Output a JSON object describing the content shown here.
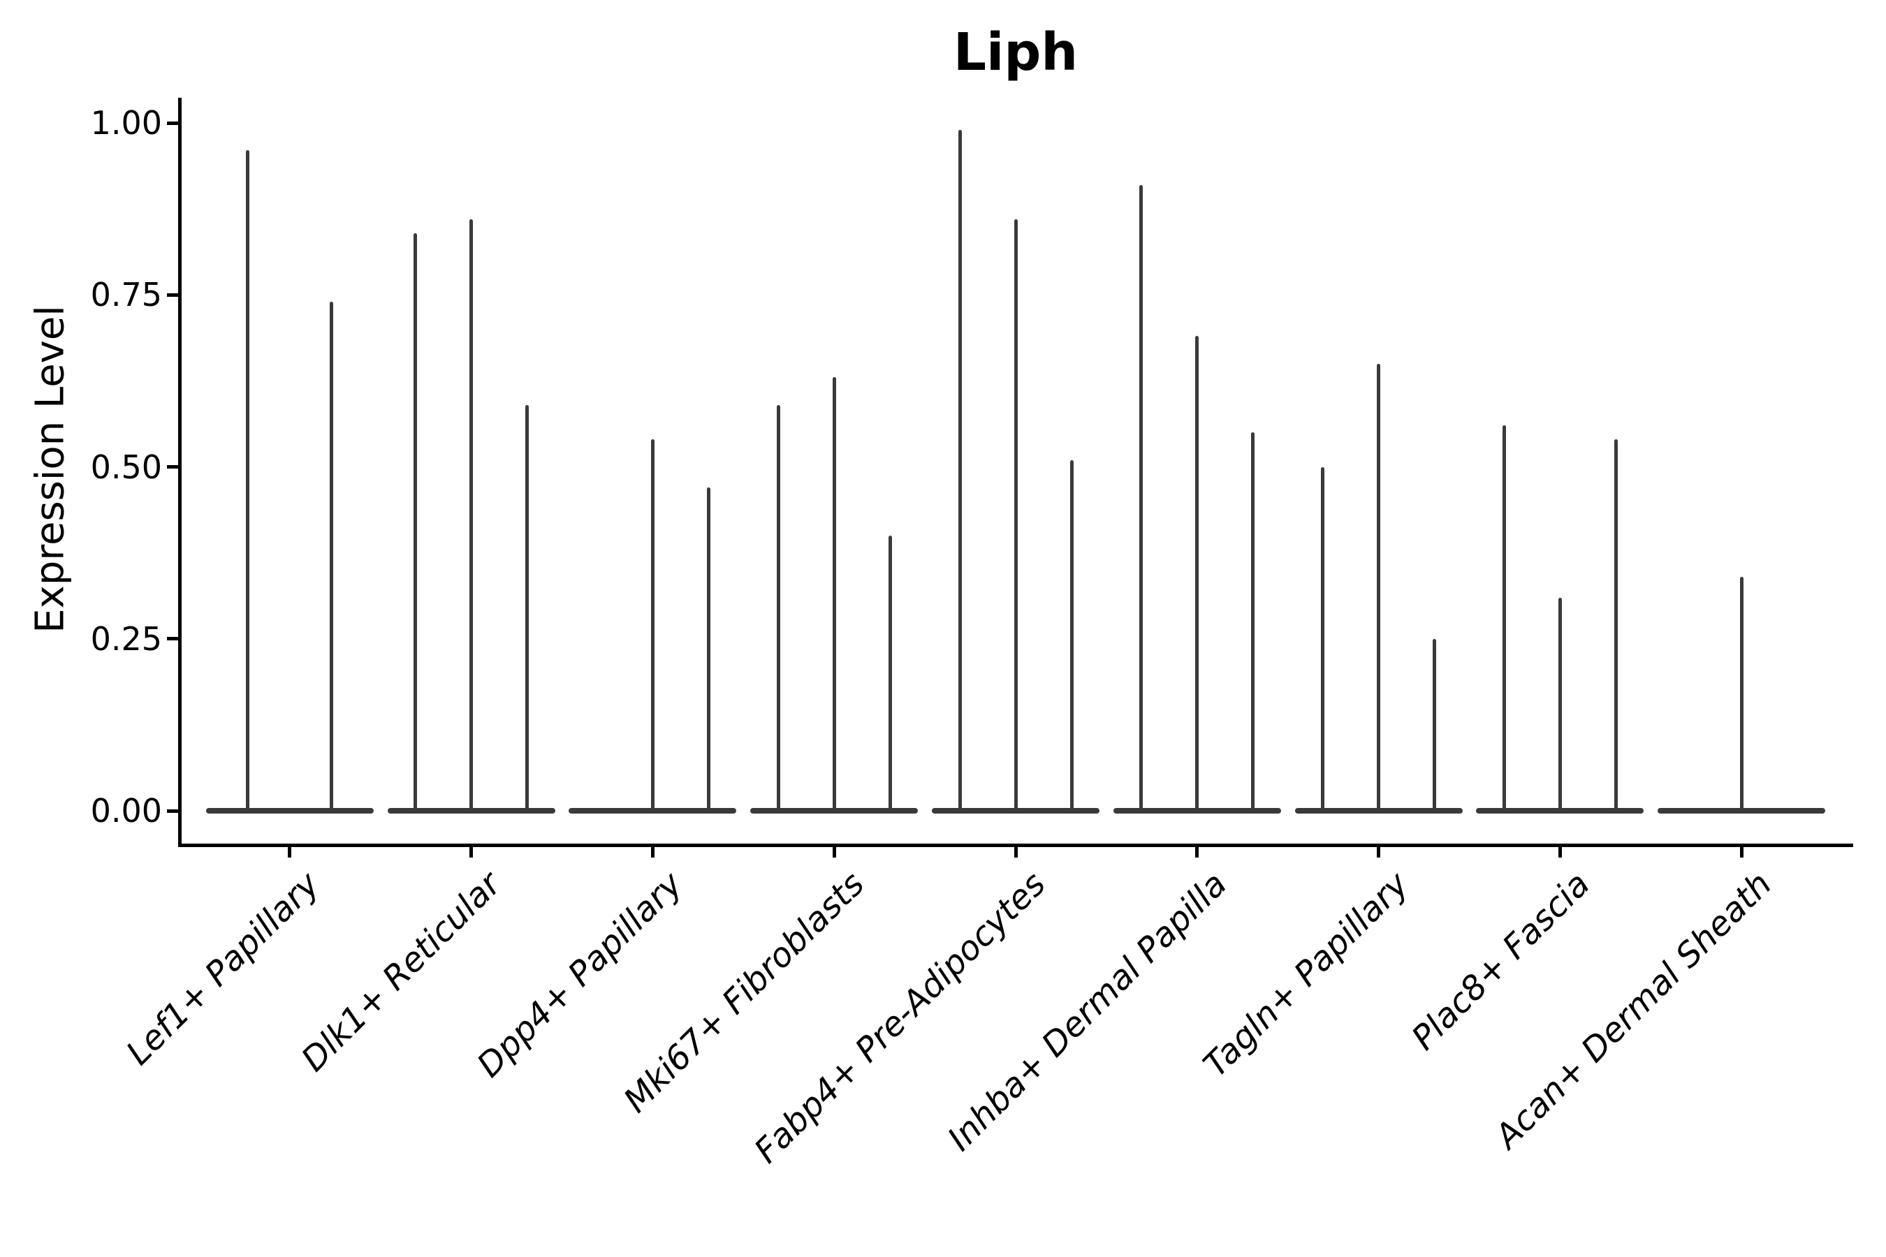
{
  "title": "Liph",
  "colors": {
    "violin": "#3a3a3a",
    "axis": "#000000",
    "background": "#ffffff",
    "text": "#000000"
  },
  "chart_data": {
    "type": "violin",
    "title": "Liph",
    "xlabel": "",
    "ylabel": "Expression Level",
    "ylim": [
      -0.05,
      1.04
    ],
    "yticks": [
      0.0,
      0.25,
      0.5,
      0.75,
      1.0
    ],
    "ytick_labels": [
      "0.00",
      "0.25",
      "0.50",
      "0.75",
      "1.00"
    ],
    "grid": false,
    "legend": null,
    "categories": [
      "Lef1+ Papillary",
      "Dlk1+ Reticular",
      "Dpp4+ Papillary",
      "Mki67+ Fibroblasts",
      "Fabp4+ Pre-Adipocytes",
      "Inhba+ Dermal Papilla",
      "Tagln+ Papillary",
      "Plac8+ Fascia",
      "Acan+ Dermal Sheath"
    ],
    "groups": [
      {
        "category": "Lef1+ Papillary",
        "violin_maxima": [
          0.96,
          0.74
        ]
      },
      {
        "category": "Dlk1+ Reticular",
        "violin_maxima": [
          0.84,
          0.86,
          0.59
        ]
      },
      {
        "category": "Dpp4+ Papillary",
        "violin_maxima": [
          0,
          0.54,
          0.47
        ]
      },
      {
        "category": "Mki67+ Fibroblasts",
        "violin_maxima": [
          0.59,
          0.63,
          0.4
        ]
      },
      {
        "category": "Fabp4+ Pre-Adipocytes",
        "violin_maxima": [
          0.99,
          0.86,
          0.51
        ]
      },
      {
        "category": "Inhba+ Dermal Papilla",
        "violin_maxima": [
          0.91,
          0.69,
          0.55
        ]
      },
      {
        "category": "Tagln+ Papillary",
        "violin_maxima": [
          0.5,
          0.65,
          0.25
        ]
      },
      {
        "category": "Plac8+ Fascia",
        "violin_maxima": [
          0.56,
          0.31,
          0.54
        ]
      },
      {
        "category": "Acan+ Dermal Sheath",
        "violin_maxima": [
          0.34
        ]
      }
    ]
  }
}
